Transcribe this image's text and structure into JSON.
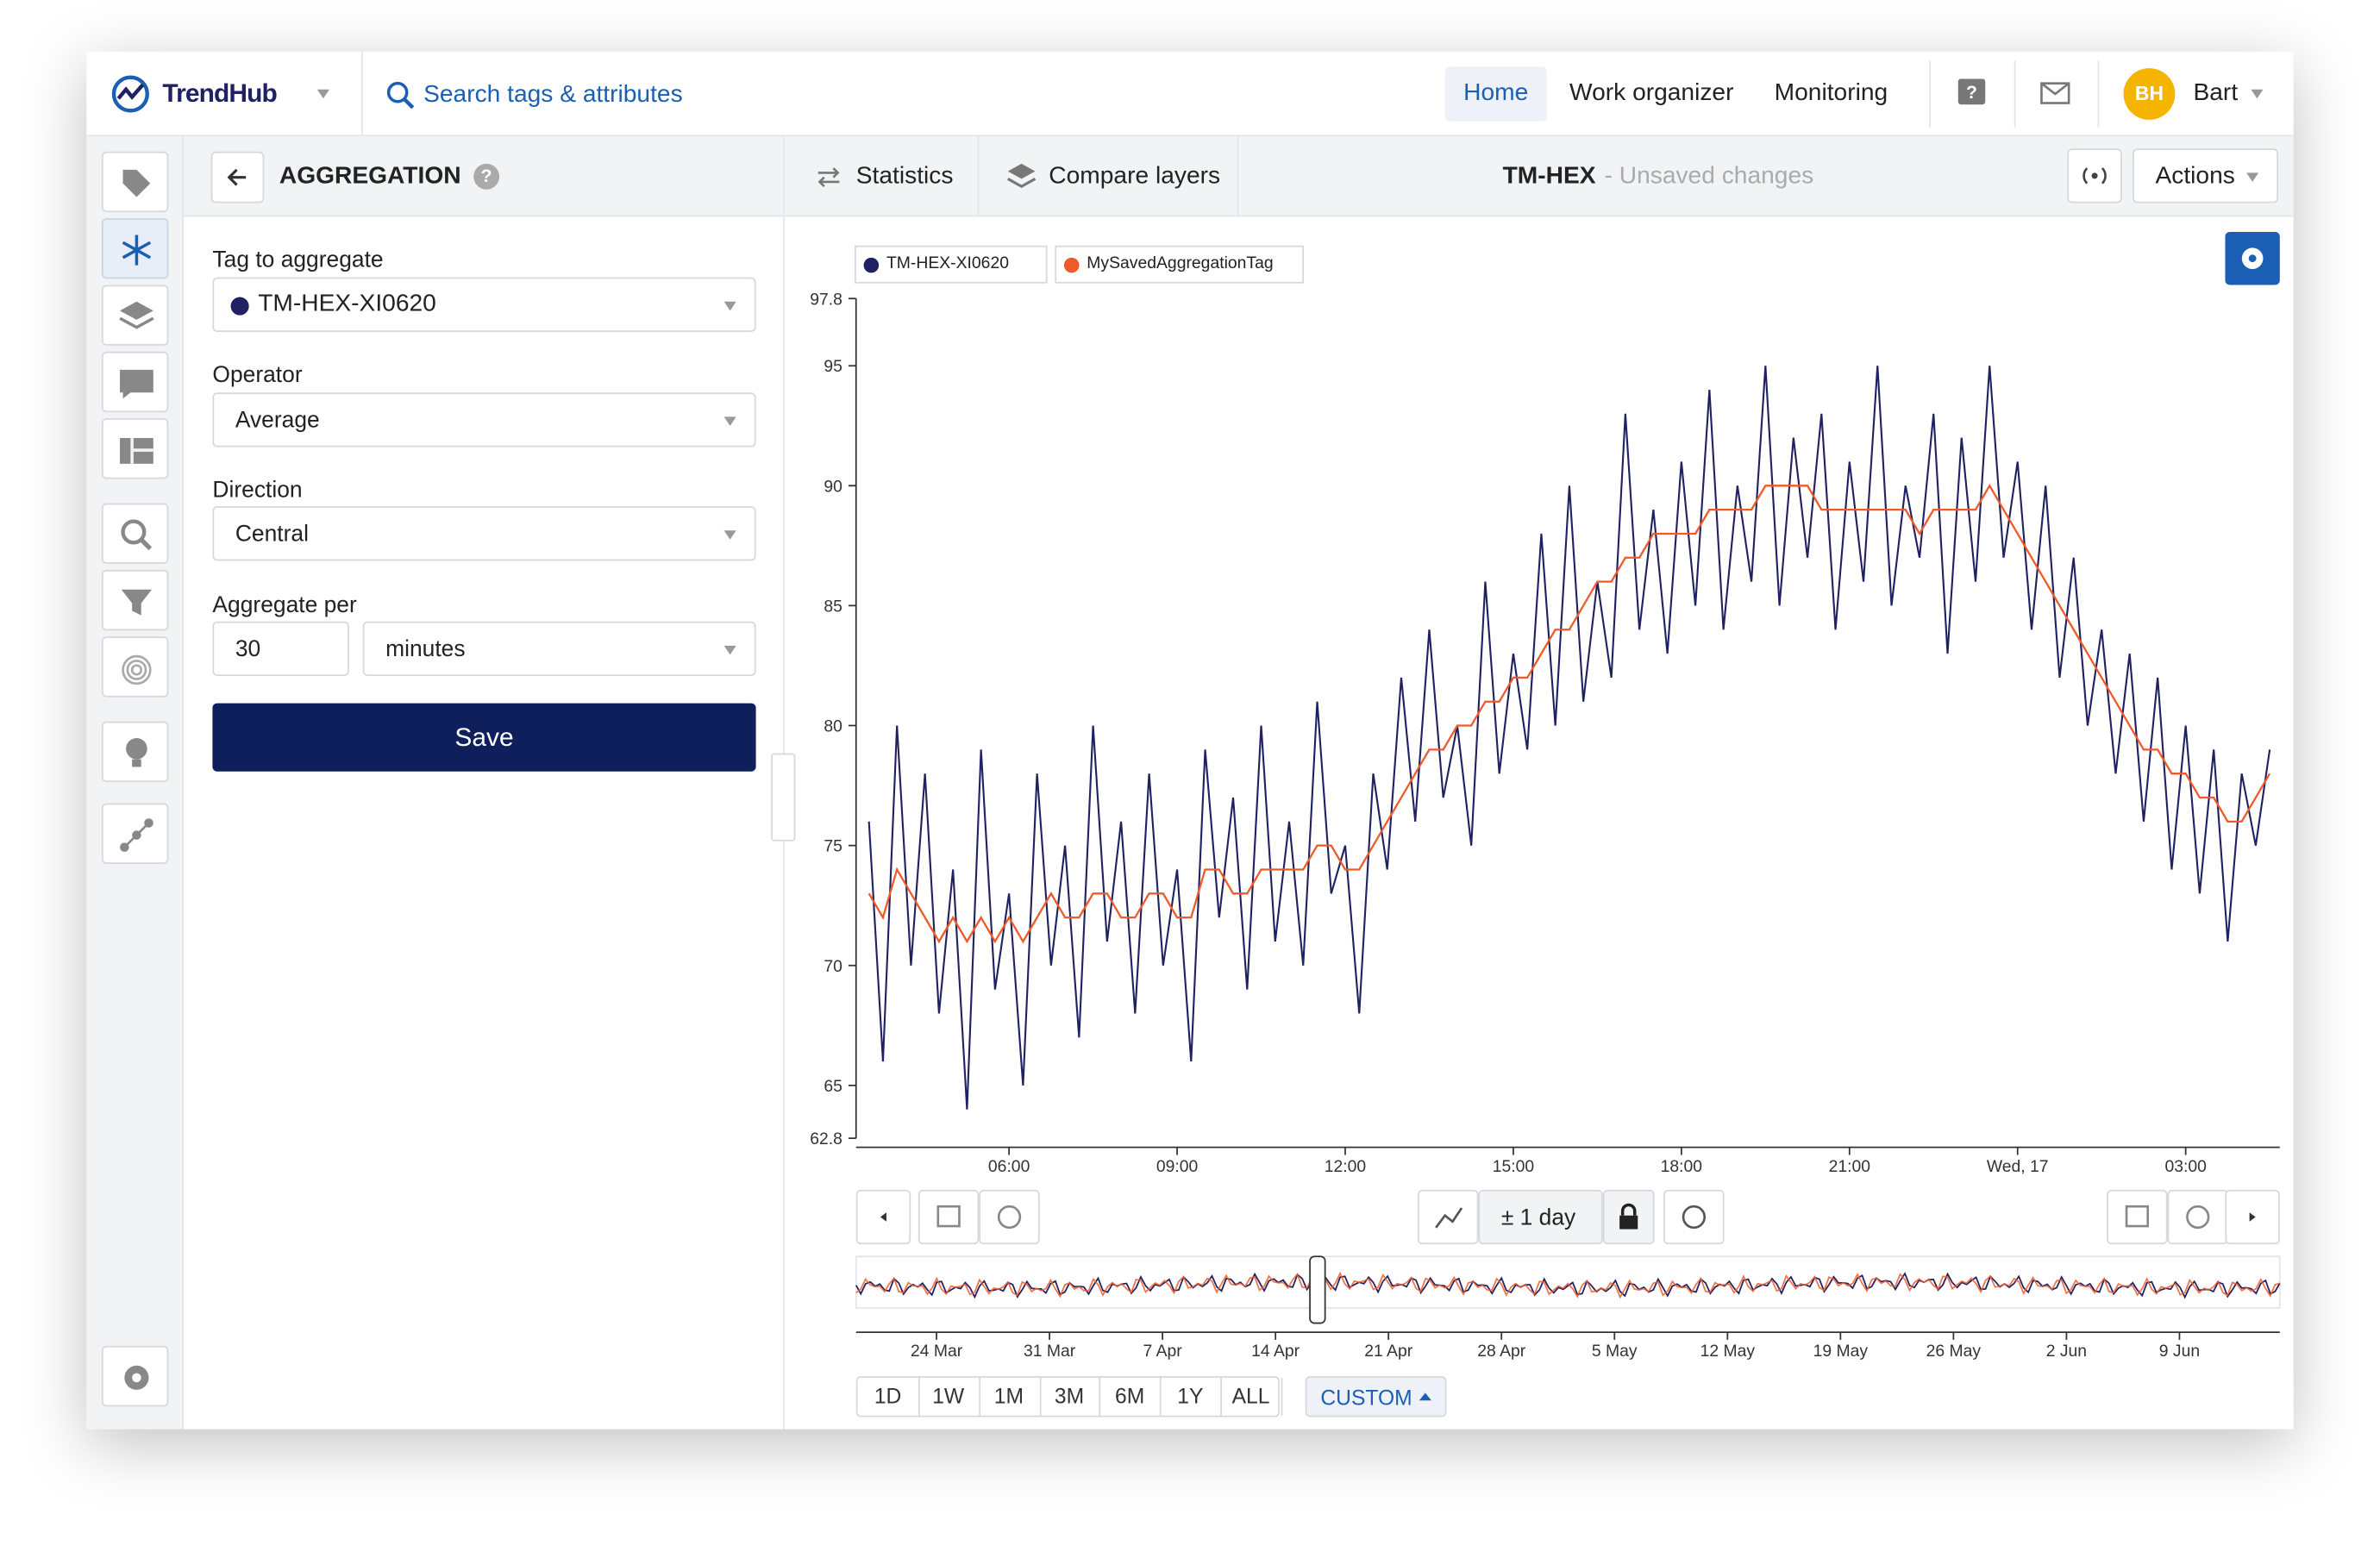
{
  "header": {
    "brand": "TrendHub",
    "search": "Search tags & attributes",
    "nav": [
      "Home",
      "Work organizer",
      "Monitoring"
    ],
    "initials": "BH",
    "user": "Bart"
  },
  "panel": {
    "title": "AGGREGATION",
    "fields": [
      {
        "label": "Tag to aggregate",
        "value": "TM-HEX-XI0620"
      },
      {
        "label": "Operator",
        "value": "Average"
      },
      {
        "label": "Direction",
        "value": "Central"
      },
      {
        "label": "Aggregate per",
        "value": "30",
        "unit": "minutes"
      }
    ],
    "save": "Save"
  },
  "toolbar": {
    "statistics": "Statistics",
    "compare": "Compare layers",
    "tag": "TM-HEX",
    "status": "- Unsaved changes",
    "actions": "Actions"
  },
  "chart_data": {
    "type": "line",
    "x": [
      3.5,
      3.75,
      4,
      4.25,
      4.5,
      4.75,
      5,
      5.25,
      5.5,
      5.75,
      6,
      6.25,
      6.5,
      6.75,
      7,
      7.25,
      7.5,
      7.75,
      8,
      8.25,
      8.5,
      8.75,
      9,
      9.25,
      9.5,
      9.75,
      10,
      10.25,
      10.5,
      10.75,
      11,
      11.25,
      11.5,
      11.75,
      12,
      12.25,
      12.5,
      12.75,
      13,
      13.25,
      13.5,
      13.75,
      14,
      14.25,
      14.5,
      14.75,
      15,
      15.25,
      15.5,
      15.75,
      16,
      16.25,
      16.5,
      16.75,
      17,
      17.25,
      17.5,
      17.75,
      18,
      18.25,
      18.5,
      18.75,
      19,
      19.25,
      19.5,
      19.75,
      20,
      20.25,
      20.5,
      20.75,
      21,
      21.25,
      21.5,
      21.75,
      22,
      22.25,
      22.5,
      22.75,
      23,
      23.25,
      23.5,
      23.75,
      24,
      24.25,
      24.5,
      24.75,
      25,
      25.25,
      25.5,
      25.75,
      26,
      26.25,
      26.5,
      26.75,
      27,
      27.25,
      27.5,
      27.75,
      28,
      28.25,
      28.5
    ],
    "series": [
      {
        "name": "TM-HEX-XI0620",
        "color": "#1f2163",
        "values": [
          76,
          66,
          80,
          70,
          78,
          68,
          74,
          64,
          79,
          69,
          73,
          65,
          78,
          70,
          75,
          67,
          80,
          71,
          76,
          68,
          78,
          70,
          74,
          66,
          79,
          72,
          77,
          69,
          80,
          71,
          76,
          70,
          81,
          73,
          75,
          68,
          78,
          74,
          82,
          76,
          84,
          77,
          80,
          75,
          86,
          78,
          83,
          79,
          88,
          80,
          90,
          81,
          86,
          82,
          93,
          84,
          89,
          83,
          91,
          85,
          94,
          84,
          90,
          86,
          95,
          85,
          92,
          87,
          93,
          84,
          91,
          86,
          95,
          85,
          90,
          87,
          93,
          83,
          92,
          86,
          95,
          87,
          91,
          84,
          90,
          82,
          87,
          80,
          84,
          78,
          83,
          76,
          82,
          74,
          80,
          73,
          79,
          71,
          78,
          75,
          79
        ]
      },
      {
        "name": "MySavedAggregationTag",
        "color": "#f05a28",
        "values": [
          73,
          72,
          74,
          73,
          72,
          71,
          72,
          71,
          72,
          71,
          72,
          71,
          72,
          73,
          72,
          72,
          73,
          73,
          72,
          72,
          73,
          73,
          72,
          72,
          74,
          74,
          73,
          73,
          74,
          74,
          74,
          74,
          75,
          75,
          74,
          74,
          75,
          76,
          77,
          78,
          79,
          79,
          80,
          80,
          81,
          81,
          82,
          82,
          83,
          84,
          84,
          85,
          86,
          86,
          87,
          87,
          88,
          88,
          88,
          88,
          89,
          89,
          89,
          89,
          90,
          90,
          90,
          90,
          89,
          89,
          89,
          89,
          89,
          89,
          89,
          88,
          89,
          89,
          89,
          89,
          90,
          89,
          88,
          87,
          86,
          85,
          84,
          83,
          82,
          81,
          80,
          79,
          79,
          78,
          78,
          77,
          77,
          76,
          76,
          77,
          78
        ]
      }
    ],
    "xlim": [
      3.27,
      28.68
    ],
    "xticks": [
      {
        "value": 6,
        "label": "06:00"
      },
      {
        "value": 9,
        "label": "09:00"
      },
      {
        "value": 12,
        "label": "12:00"
      },
      {
        "value": 15,
        "label": "15:00"
      },
      {
        "value": 18,
        "label": "18:00"
      },
      {
        "value": 21,
        "label": "21:00"
      },
      {
        "value": 24,
        "label": "Wed, 17"
      },
      {
        "value": 27,
        "label": "03:00"
      }
    ],
    "ylim": [
      62.8,
      97.8
    ],
    "yticks": [
      62.8,
      65,
      70,
      75,
      80,
      85,
      90,
      95,
      97.8
    ],
    "grid": false
  },
  "controls": {
    "window": "± 1 day",
    "ranges": [
      "1D",
      "1W",
      "1M",
      "3M",
      "6M",
      "1Y",
      "ALL"
    ],
    "custom": "CUSTOM"
  },
  "navigator": {
    "labels": [
      "24 Mar",
      "31 Mar",
      "7 Apr",
      "14 Apr",
      "21 Apr",
      "28 Apr",
      "5 May",
      "12 May",
      "19 May",
      "26 May",
      "2 Jun",
      "9 Jun"
    ]
  }
}
